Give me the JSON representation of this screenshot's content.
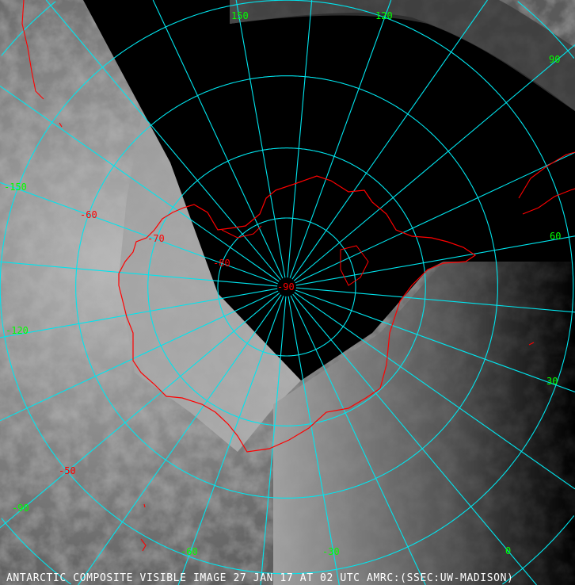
{
  "caption": "ANTARCTIC COMPOSITE VISIBLE IMAGE 27 JAN 17 AT 02 UTC AMRC:(SSEC:UW-MADISON)",
  "projection": "polar stereographic (south pole)",
  "colors": {
    "graticule": "#00e5ee",
    "longitude_labels": "#00ff00",
    "latitude_labels": "#ff0000",
    "coastline": "#ff0000",
    "no_data": "#000000"
  },
  "latitude_rings": [
    -80,
    -70,
    -60,
    -50,
    -40,
    -30,
    -20
  ],
  "longitude_lines_every_deg": 15,
  "longitude_labels": [
    "-150",
    "-120",
    "-90",
    "-60",
    "-30",
    "0",
    "30",
    "60",
    "90",
    "120",
    "150"
  ],
  "latitude_labels": [
    "-50",
    "-60",
    "-70",
    "-80",
    "-90"
  ]
}
